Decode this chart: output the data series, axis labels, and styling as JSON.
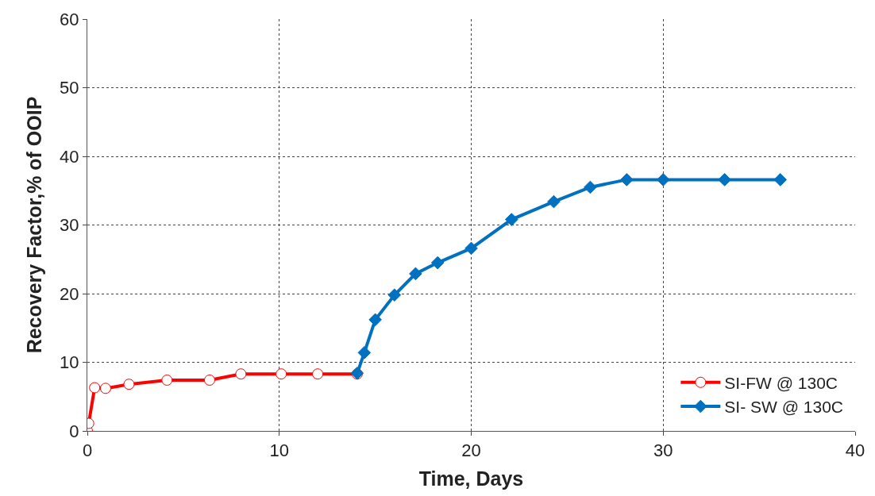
{
  "chart_data": {
    "type": "line",
    "xlabel": "Time, Days",
    "ylabel": "Recovery Factor,% of OOIP",
    "xlim": [
      0,
      40
    ],
    "xticks": [
      0,
      10,
      20,
      30,
      40
    ],
    "ylim": [
      0,
      60
    ],
    "yticks": [
      0,
      10,
      20,
      30,
      40,
      50,
      60
    ],
    "grid": true,
    "legend": "bottom right",
    "series": [
      {
        "name": "SI-FW @ 130C",
        "color": "#ff0000",
        "marker": "circle",
        "x": [
          0,
          0.07,
          0.38,
          0.95,
          2.17,
          4.15,
          6.37,
          8.0,
          10.1,
          12.0,
          14.06
        ],
        "values": [
          0,
          1.1,
          6.3,
          6.2,
          6.8,
          7.4,
          7.4,
          8.3,
          8.3,
          8.3,
          8.3
        ]
      },
      {
        "name": "SI- SW @ 130C",
        "color": "#0070c0",
        "marker": "diamond",
        "x": [
          14.06,
          14.43,
          15.0,
          16.0,
          17.1,
          18.25,
          20.0,
          22.1,
          24.3,
          26.2,
          28.1,
          30.0,
          33.2,
          36.1
        ],
        "values": [
          8.4,
          11.4,
          16.2,
          19.8,
          22.9,
          24.5,
          26.6,
          30.8,
          33.4,
          35.5,
          36.6,
          36.6,
          36.6,
          36.6
        ]
      }
    ]
  }
}
